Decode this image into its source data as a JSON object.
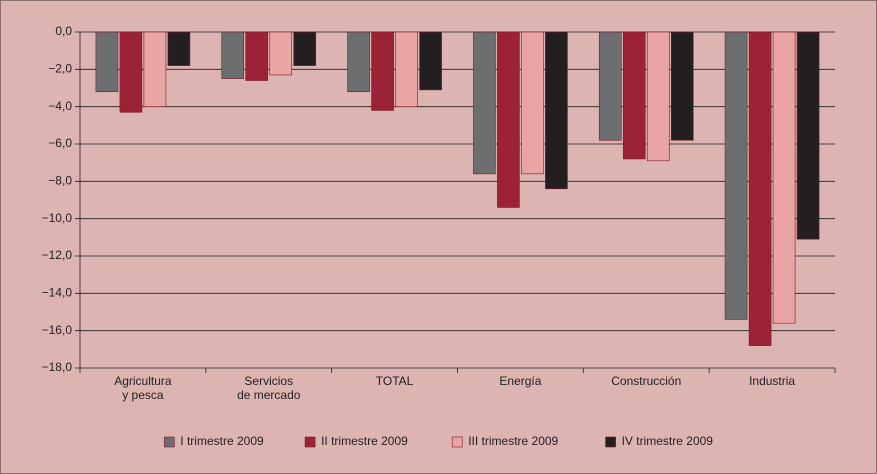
{
  "chart_data": {
    "type": "bar",
    "categories": [
      "Agricultura\ny pesca",
      "Servicios\nde mercado",
      "TOTAL",
      "Energía",
      "Construcción",
      "Industria"
    ],
    "series": [
      {
        "name": "I trimestre 2009",
        "color": "#6d6e70",
        "values": [
          -3.2,
          -2.5,
          -3.2,
          -7.6,
          -5.8,
          -15.4
        ]
      },
      {
        "name": "II trimestre 2009",
        "color": "#9b2335",
        "values": [
          -4.3,
          -2.6,
          -4.2,
          -9.4,
          -6.8,
          -16.8
        ]
      },
      {
        "name": "III trimestre 2009",
        "color": "#e9a4a4",
        "values": [
          -4.0,
          -2.3,
          -4.0,
          -7.6,
          -6.9,
          -15.6
        ]
      },
      {
        "name": "IV trimestre 2009",
        "color": "#231f20",
        "values": [
          -1.8,
          -1.8,
          -3.1,
          -8.4,
          -5.8,
          -11.1
        ]
      }
    ],
    "ylim": [
      -18,
      0
    ],
    "yticks": [
      {
        "value": 0,
        "label": "0,0"
      },
      {
        "value": -2,
        "label": "−2,0"
      },
      {
        "value": -4,
        "label": "−4,0"
      },
      {
        "value": -6,
        "label": "−6,0"
      },
      {
        "value": -8,
        "label": "−8,0"
      },
      {
        "value": -10,
        "label": "−10,0"
      },
      {
        "value": -12,
        "label": "−12,0"
      },
      {
        "value": -14,
        "label": "−14,0"
      },
      {
        "value": -16,
        "label": "−16,0"
      },
      {
        "value": -18,
        "label": "−18,0"
      }
    ],
    "grid": true,
    "legend": "bottom"
  }
}
